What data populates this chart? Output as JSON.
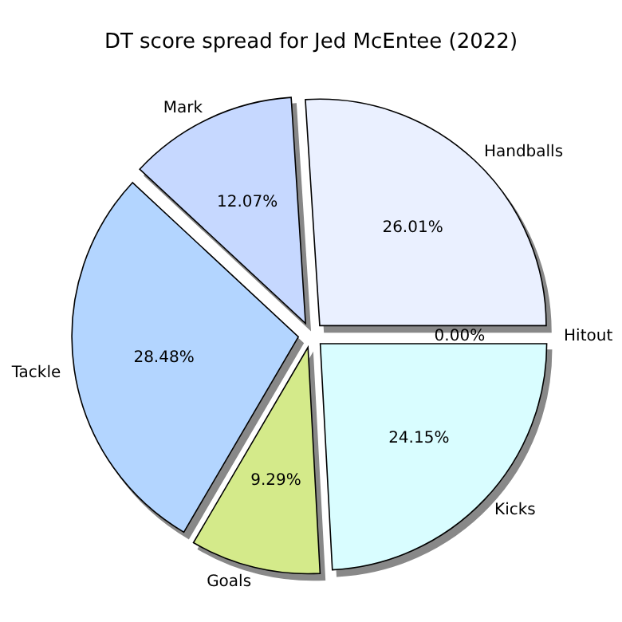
{
  "chart_data": {
    "type": "pie",
    "title": "DT score spread for Jed McEntee (2022)",
    "categories": [
      "Handballs",
      "Mark",
      "Tackle",
      "Goals",
      "Kicks",
      "Hitout"
    ],
    "values": [
      26.01,
      12.07,
      28.48,
      9.29,
      24.15,
      0.0
    ],
    "colors": [
      "#eaf0ff",
      "#c6d8ff",
      "#b3d5ff",
      "#d4ea8a",
      "#d9fdff",
      "#ffffff"
    ],
    "value_labels": [
      "26.01%",
      "12.07%",
      "28.48%",
      "9.29%",
      "24.15%",
      "0.00%"
    ]
  }
}
